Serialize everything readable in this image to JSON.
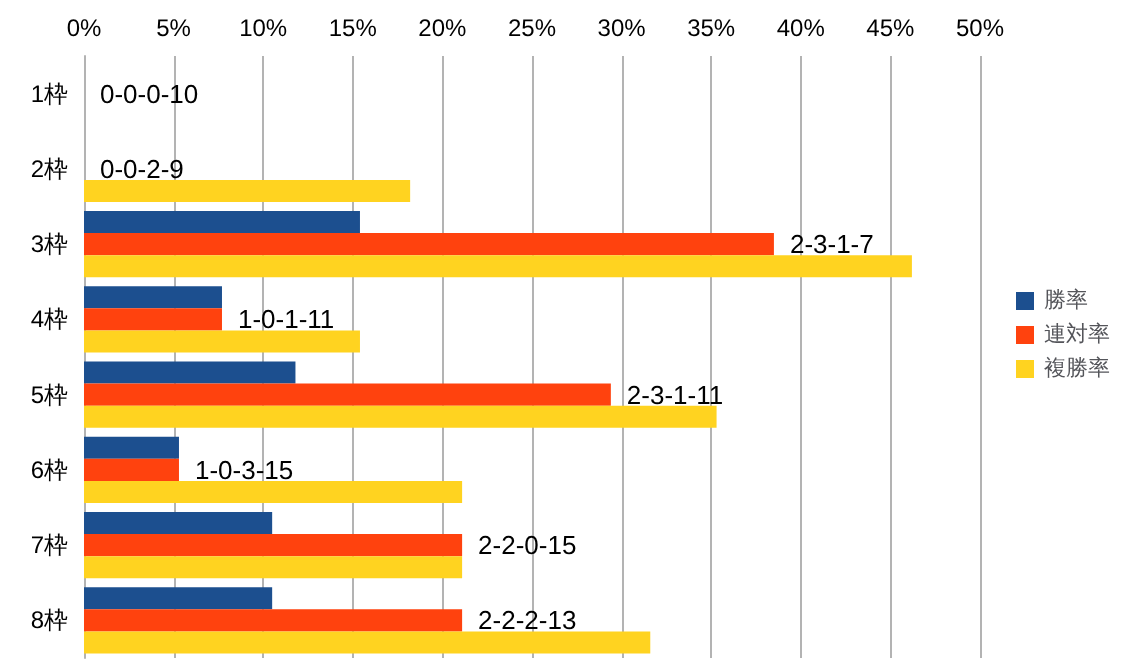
{
  "chart_data": {
    "type": "bar",
    "orientation": "horizontal",
    "categories": [
      "1枠",
      "2枠",
      "3枠",
      "4枠",
      "5枠",
      "6枠",
      "7枠",
      "8枠"
    ],
    "series": [
      {
        "name": "勝率",
        "color": "#1c4f8f",
        "values": [
          0,
          0,
          15.4,
          7.7,
          11.8,
          5.3,
          10.5,
          10.5
        ]
      },
      {
        "name": "連対率",
        "color": "#ff420e",
        "values": [
          0,
          0,
          38.5,
          7.7,
          29.4,
          5.3,
          21.1,
          21.1
        ],
        "value_labels": [
          "0-0-0-10",
          "0-0-2-9",
          "2-3-1-7",
          "1-0-1-11",
          "2-3-1-11",
          "1-0-3-15",
          "2-2-0-15",
          "2-2-2-13"
        ]
      },
      {
        "name": "複勝率",
        "color": "#ffd320",
        "values": [
          0,
          18.2,
          46.2,
          15.4,
          35.3,
          21.1,
          21.1,
          31.6
        ]
      }
    ],
    "xlim": [
      0,
      50
    ],
    "xticks": [
      {
        "value": 0,
        "label": "0%"
      },
      {
        "value": 5,
        "label": "5%"
      },
      {
        "value": 10,
        "label": "10%"
      },
      {
        "value": 15,
        "label": "15%"
      },
      {
        "value": 20,
        "label": "20%"
      },
      {
        "value": 25,
        "label": "25%"
      },
      {
        "value": 30,
        "label": "30%"
      },
      {
        "value": 35,
        "label": "35%"
      },
      {
        "value": 40,
        "label": "40%"
      },
      {
        "value": 45,
        "label": "45%"
      },
      {
        "value": 50,
        "label": "50%"
      }
    ],
    "grid": "x",
    "legend": "right"
  }
}
